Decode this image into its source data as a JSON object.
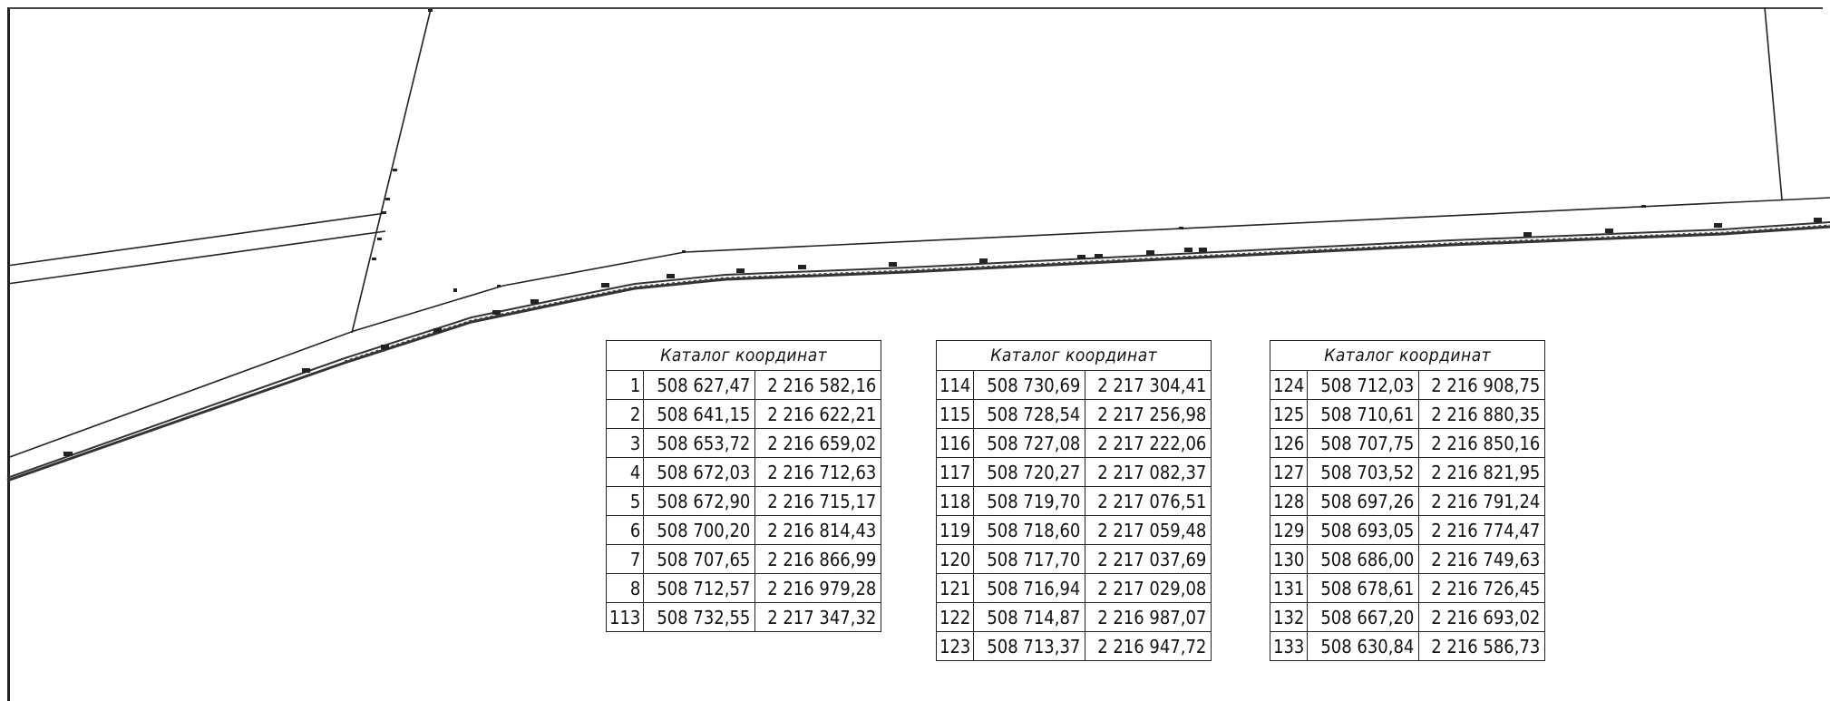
{
  "catalogs": [
    {
      "title": "Каталог координат",
      "rows": [
        {
          "n": "1",
          "x": "508 627,47",
          "y": "2 216 582,16"
        },
        {
          "n": "2",
          "x": "508 641,15",
          "y": "2 216 622,21"
        },
        {
          "n": "3",
          "x": "508 653,72",
          "y": "2 216 659,02"
        },
        {
          "n": "4",
          "x": "508 672,03",
          "y": "2 216 712,63"
        },
        {
          "n": "5",
          "x": "508 672,90",
          "y": "2 216 715,17"
        },
        {
          "n": "6",
          "x": "508 700,20",
          "y": "2 216 814,43"
        },
        {
          "n": "7",
          "x": "508 707,65",
          "y": "2 216 866,99"
        },
        {
          "n": "8",
          "x": "508 712,57",
          "y": "2 216 979,28"
        },
        {
          "n": "113",
          "x": "508 732,55",
          "y": "2 217 347,32"
        }
      ]
    },
    {
      "title": "Каталог координат",
      "rows": [
        {
          "n": "114",
          "x": "508 730,69",
          "y": "2 217 304,41"
        },
        {
          "n": "115",
          "x": "508 728,54",
          "y": "2 217 256,98"
        },
        {
          "n": "116",
          "x": "508 727,08",
          "y": "2 217 222,06"
        },
        {
          "n": "117",
          "x": "508 720,27",
          "y": "2 217 082,37"
        },
        {
          "n": "118",
          "x": "508 719,70",
          "y": "2 217 076,51"
        },
        {
          "n": "119",
          "x": "508 718,60",
          "y": "2 217 059,48"
        },
        {
          "n": "120",
          "x": "508 717,70",
          "y": "2 217 037,69"
        },
        {
          "n": "121",
          "x": "508 716,94",
          "y": "2 217 029,08"
        },
        {
          "n": "122",
          "x": "508 714,87",
          "y": "2 216 987,07"
        },
        {
          "n": "123",
          "x": "508 713,37",
          "y": "2 216 947,72"
        }
      ]
    },
    {
      "title": "Каталог координат",
      "rows": [
        {
          "n": "124",
          "x": "508 712,03",
          "y": "2 216 908,75"
        },
        {
          "n": "125",
          "x": "508 710,61",
          "y": "2 216 880,35"
        },
        {
          "n": "126",
          "x": "508 707,75",
          "y": "2 216 850,16"
        },
        {
          "n": "127",
          "x": "508 703,52",
          "y": "2 216 821,95"
        },
        {
          "n": "128",
          "x": "508 697,26",
          "y": "2 216 791,24"
        },
        {
          "n": "129",
          "x": "508 693,05",
          "y": "2 216 774,47"
        },
        {
          "n": "130",
          "x": "508 686,00",
          "y": "2 216 749,63"
        },
        {
          "n": "131",
          "x": "508 678,61",
          "y": "2 216 726,45"
        },
        {
          "n": "132",
          "x": "508 667,20",
          "y": "2 216 693,02"
        },
        {
          "n": "133",
          "x": "508 630,84",
          "y": "2 216 586,73"
        }
      ]
    }
  ]
}
